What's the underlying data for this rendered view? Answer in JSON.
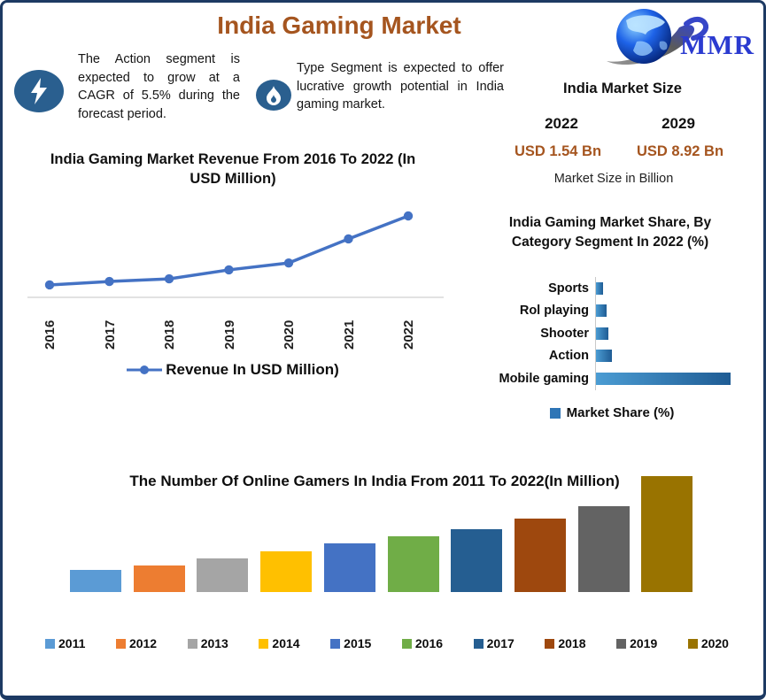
{
  "title": "India Gaming Market",
  "logo": {
    "text": "MMR"
  },
  "callouts": [
    {
      "icon": "lightning-icon",
      "text": "The Action segment is expected to grow at a CAGR of 5.5% during the forecast period."
    },
    {
      "icon": "flame-icon",
      "text": "Type Segment is expected to offer lucrative growth potential in India gaming market."
    }
  ],
  "market_size": {
    "heading": "India Market Size",
    "columns": [
      {
        "year": "2022",
        "value": "USD 1.54 Bn"
      },
      {
        "year": "2029",
        "value": "USD 8.92 Bn"
      }
    ],
    "note": "Market Size in Billion",
    "value_color": "#a5551f"
  },
  "chart_data": [
    {
      "type": "line",
      "title": "India Gaming Market Revenue From 2016 To 2022 (In USD Million)",
      "x": [
        "2016",
        "2017",
        "2018",
        "2019",
        "2020",
        "2021",
        "2022"
      ],
      "values": [
        235,
        300,
        350,
        520,
        650,
        1105,
        1540
      ],
      "series_name": "Revenue In USD Million)",
      "color": "#4472c4",
      "ylim": [
        0,
        1600
      ],
      "grid": false,
      "legend_position": "bottom"
    },
    {
      "type": "bar",
      "orientation": "horizontal",
      "title": "India Gaming Market Share, By Category Segment In 2022 (%)",
      "categories": [
        "Sports",
        "Rol playing",
        "Shooter",
        "Action",
        "Mobile gaming"
      ],
      "values": [
        4,
        6,
        7,
        9,
        74
      ],
      "legend": "Market Share (%)",
      "color": "#2e75b6",
      "xlim": [
        0,
        80
      ],
      "grid": false,
      "legend_position": "bottom"
    },
    {
      "type": "bar",
      "title": "The Number Of Online Gamers In India From 2011 To 2022(In Million)",
      "categories": [
        "2011",
        "2012",
        "2013",
        "2014",
        "2015",
        "2016",
        "2017",
        "2018",
        "2019",
        "2020"
      ],
      "values": [
        25,
        30,
        38,
        46,
        55,
        63,
        71,
        83,
        97,
        131
      ],
      "colors": [
        "#5b9bd5",
        "#ed7d31",
        "#a5a5a5",
        "#ffc000",
        "#4472c4",
        "#70ad47",
        "#255e91",
        "#9e480e",
        "#636363",
        "#997300"
      ],
      "ylim": [
        0,
        140
      ],
      "grid": false,
      "legend_position": "bottom"
    }
  ]
}
